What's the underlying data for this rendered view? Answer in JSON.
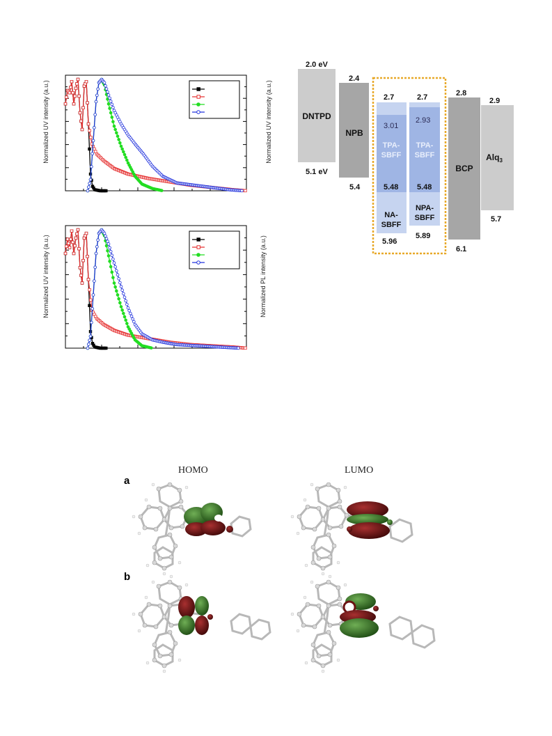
{
  "chart_data": [
    {
      "type": "line",
      "ylabel_left": "Normalized UV intensity (a.u.)",
      "ylabel_right": "Normalized UV intensity (a.u.)",
      "legend": "top-right",
      "series": [
        {
          "color": "#000000",
          "marker": "filled-square",
          "values": [
            [
              0,
              0.78
            ],
            [
              3,
              0.9
            ],
            [
              6,
              0.88
            ],
            [
              9,
              0.98
            ],
            [
              12,
              0.78
            ],
            [
              15,
              0.92
            ],
            [
              18,
              1.0
            ],
            [
              21,
              0.7
            ],
            [
              24,
              0.55
            ],
            [
              27,
              0.94
            ],
            [
              30,
              0.98
            ],
            [
              33,
              0.6
            ],
            [
              36,
              0.15
            ],
            [
              39,
              0.04
            ],
            [
              42,
              0.01
            ],
            [
              50,
              0.0
            ],
            [
              60,
              0.0
            ]
          ]
        },
        {
          "color": "#e53030",
          "marker": "open-square",
          "values": [
            [
              0,
              0.78
            ],
            [
              3,
              0.9
            ],
            [
              6,
              0.88
            ],
            [
              9,
              0.98
            ],
            [
              12,
              0.78
            ],
            [
              15,
              0.92
            ],
            [
              18,
              1.0
            ],
            [
              21,
              0.7
            ],
            [
              24,
              0.55
            ],
            [
              27,
              0.94
            ],
            [
              30,
              0.98
            ],
            [
              33,
              0.6
            ],
            [
              38,
              0.42
            ],
            [
              45,
              0.33
            ],
            [
              55,
              0.27
            ],
            [
              70,
              0.2
            ],
            [
              90,
              0.15
            ],
            [
              120,
              0.11
            ],
            [
              150,
              0.08
            ],
            [
              180,
              0.05
            ],
            [
              210,
              0.03
            ],
            [
              240,
              0.01
            ],
            [
              260,
              0.0
            ]
          ]
        },
        {
          "color": "#22dd22",
          "marker": "filled-circle",
          "values": [
            [
              32,
              0.0
            ],
            [
              36,
              0.1
            ],
            [
              40,
              0.45
            ],
            [
              44,
              0.8
            ],
            [
              48,
              0.97
            ],
            [
              52,
              1.0
            ],
            [
              56,
              0.95
            ],
            [
              62,
              0.78
            ],
            [
              70,
              0.58
            ],
            [
              80,
              0.4
            ],
            [
              90,
              0.25
            ],
            [
              100,
              0.13
            ],
            [
              110,
              0.06
            ],
            [
              125,
              0.02
            ],
            [
              140,
              0.0
            ]
          ]
        },
        {
          "color": "#2233dd",
          "marker": "open-circle",
          "values": [
            [
              32,
              0.0
            ],
            [
              36,
              0.1
            ],
            [
              40,
              0.45
            ],
            [
              44,
              0.8
            ],
            [
              48,
              0.97
            ],
            [
              52,
              1.0
            ],
            [
              56,
              0.97
            ],
            [
              62,
              0.86
            ],
            [
              70,
              0.72
            ],
            [
              80,
              0.6
            ],
            [
              90,
              0.5
            ],
            [
              100,
              0.42
            ],
            [
              112,
              0.33
            ],
            [
              125,
              0.22
            ],
            [
              140,
              0.13
            ],
            [
              160,
              0.07
            ],
            [
              185,
              0.05
            ],
            [
              210,
              0.03
            ],
            [
              235,
              0.01
            ],
            [
              255,
              0.0
            ]
          ]
        }
      ]
    },
    {
      "type": "line",
      "ylabel_left": "Normalized UV intensity (a.u.)",
      "ylabel_right": "Normalized PL intensity (a.u.)",
      "legend": "top-right",
      "series": [
        {
          "color": "#000000",
          "marker": "filled-square",
          "values": [
            [
              0,
              0.8
            ],
            [
              3,
              0.92
            ],
            [
              6,
              0.85
            ],
            [
              9,
              0.99
            ],
            [
              12,
              0.8
            ],
            [
              15,
              0.93
            ],
            [
              18,
              1.0
            ],
            [
              21,
              0.68
            ],
            [
              24,
              0.55
            ],
            [
              27,
              0.93
            ],
            [
              30,
              0.97
            ],
            [
              33,
              0.58
            ],
            [
              36,
              0.14
            ],
            [
              39,
              0.04
            ],
            [
              42,
              0.01
            ],
            [
              50,
              0.0
            ],
            [
              60,
              0.0
            ]
          ]
        },
        {
          "color": "#e53030",
          "marker": "open-square",
          "values": [
            [
              0,
              0.8
            ],
            [
              3,
              0.92
            ],
            [
              6,
              0.85
            ],
            [
              9,
              0.99
            ],
            [
              12,
              0.8
            ],
            [
              15,
              0.93
            ],
            [
              18,
              1.0
            ],
            [
              21,
              0.68
            ],
            [
              24,
              0.55
            ],
            [
              27,
              0.93
            ],
            [
              30,
              0.97
            ],
            [
              33,
              0.58
            ],
            [
              38,
              0.32
            ],
            [
              45,
              0.25
            ],
            [
              55,
              0.2
            ],
            [
              70,
              0.15
            ],
            [
              90,
              0.11
            ],
            [
              120,
              0.08
            ],
            [
              150,
              0.05
            ],
            [
              180,
              0.03
            ],
            [
              210,
              0.02
            ],
            [
              240,
              0.01
            ],
            [
              260,
              0.0
            ]
          ]
        },
        {
          "color": "#22dd22",
          "marker": "filled-circle",
          "values": [
            [
              32,
              0.0
            ],
            [
              36,
              0.1
            ],
            [
              40,
              0.45
            ],
            [
              44,
              0.8
            ],
            [
              48,
              0.97
            ],
            [
              52,
              1.0
            ],
            [
              56,
              0.95
            ],
            [
              62,
              0.78
            ],
            [
              70,
              0.55
            ],
            [
              80,
              0.35
            ],
            [
              90,
              0.18
            ],
            [
              100,
              0.07
            ],
            [
              110,
              0.02
            ],
            [
              125,
              0.0
            ]
          ]
        },
        {
          "color": "#2233dd",
          "marker": "open-circle",
          "values": [
            [
              32,
              0.0
            ],
            [
              36,
              0.1
            ],
            [
              40,
              0.45
            ],
            [
              44,
              0.8
            ],
            [
              48,
              0.97
            ],
            [
              52,
              1.0
            ],
            [
              56,
              0.97
            ],
            [
              62,
              0.88
            ],
            [
              70,
              0.72
            ],
            [
              80,
              0.52
            ],
            [
              90,
              0.34
            ],
            [
              100,
              0.2
            ],
            [
              110,
              0.12
            ],
            [
              125,
              0.07
            ],
            [
              140,
              0.05
            ],
            [
              160,
              0.03
            ],
            [
              190,
              0.02
            ],
            [
              220,
              0.01
            ],
            [
              250,
              0.0
            ]
          ]
        }
      ]
    }
  ],
  "energy_diagram": {
    "layers": [
      {
        "name": "DNTPD",
        "top": "2.0 eV",
        "bottom": "5.1 eV",
        "color": "#cccccc"
      },
      {
        "name": "NPB",
        "top": "2.4",
        "bottom": "5.4",
        "color": "#a6a6a6"
      },
      {
        "name": "NA-SBFF",
        "top": "2.7",
        "bottom": "5.96",
        "color": "#c6d4f0"
      },
      {
        "name": "NPA-SBFF",
        "top": "2.7",
        "bottom": "5.89",
        "color": "#c6d4f0"
      },
      {
        "name": "BCP",
        "top": "2.8",
        "bottom": "6.1",
        "color": "#a6a6a6"
      },
      {
        "name": "Alq",
        "sub": "3",
        "top": "2.9",
        "bottom": "5.7",
        "color": "#cccccc"
      }
    ],
    "dopants": [
      {
        "name": "TPA-SBFF",
        "top": "3.01",
        "bottom": "5.48",
        "color": "#9fb5e4"
      },
      {
        "name": "TPA-SBFF",
        "top": "2.93",
        "bottom": "5.48",
        "color": "#9fb5e4"
      }
    ],
    "box_color": "#e8a92a"
  },
  "orbitals": {
    "homo_label": "HOMO",
    "lumo_label": "LUMO",
    "panel_a": "a",
    "panel_b": "b",
    "lobe_green": "#2e6b1e",
    "lobe_red": "#6b1212"
  }
}
